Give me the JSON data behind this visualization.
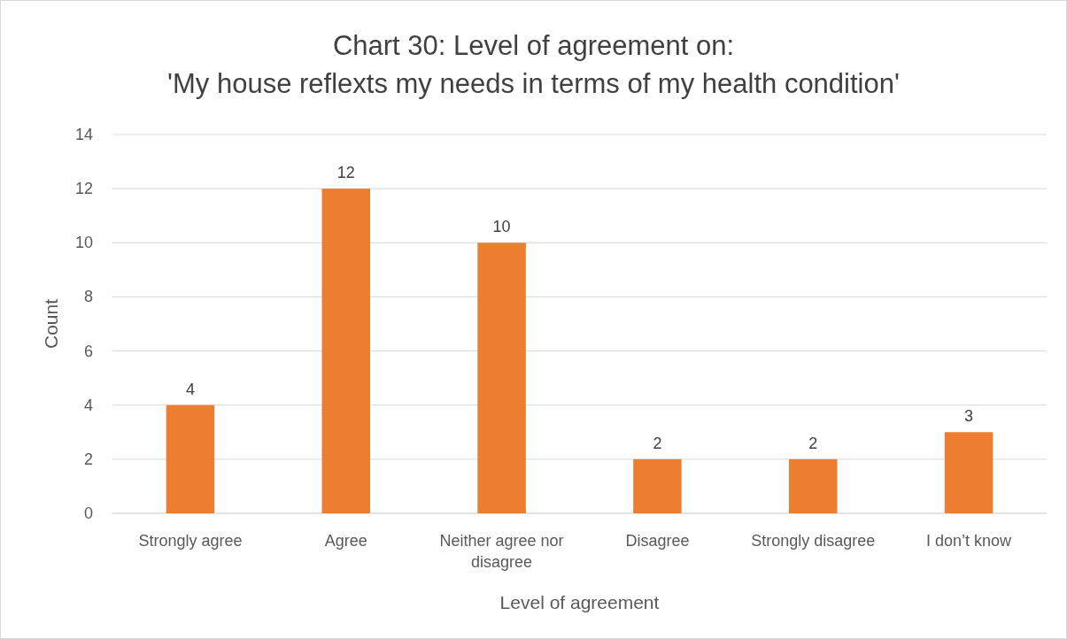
{
  "chart_data": {
    "type": "bar",
    "title": "Chart 30: Level of agreement on:\n'My house reflexts my needs in terms of my health condition'",
    "xlabel": "Level of agreement",
    "ylabel": "Count",
    "categories": [
      "Strongly agree",
      "Agree",
      "Neither agree nor disagree",
      "Disagree",
      "Strongly disagree",
      "I don’t know"
    ],
    "values": [
      4,
      12,
      10,
      2,
      2,
      3
    ],
    "color": "#ed7d31",
    "ylim": [
      0,
      14
    ],
    "yticks": [
      0,
      2,
      4,
      6,
      8,
      10,
      12,
      14
    ],
    "grid": "y",
    "data_labels": true
  }
}
